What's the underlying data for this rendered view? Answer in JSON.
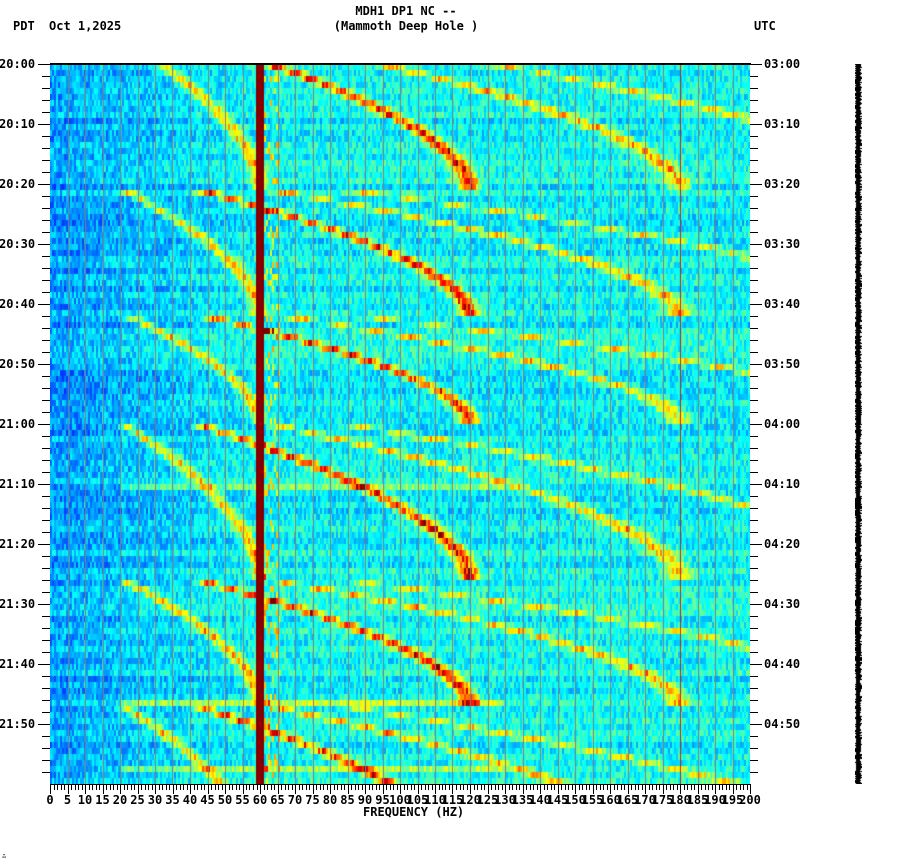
{
  "header": {
    "title_line1": "MDH1 DP1 NC --",
    "title_line2": "(Mammoth Deep Hole )",
    "left_timezone": "PDT",
    "date": "Oct 1,2025",
    "right_timezone": "UTC"
  },
  "footer": {
    "corner_mark": "∴"
  },
  "colors": {
    "background": "#ffffff",
    "axis": "#000000",
    "gridline": "#808080",
    "line_60hz": "#8b0000",
    "line_180hz": "#c0201a",
    "trace": "#000000"
  },
  "chart_data": {
    "type": "heatmap",
    "title": "MDH1 DP1 NC -- (Mammoth Deep Hole )",
    "subtitle": "PDT Oct 1,2025",
    "xlabel": "FREQUENCY (HZ)",
    "ylabel_left": "PDT",
    "ylabel_right": "UTC",
    "xlim": [
      0,
      200
    ],
    "x_ticks": [
      0,
      5,
      10,
      15,
      20,
      25,
      30,
      35,
      40,
      45,
      50,
      55,
      60,
      65,
      70,
      75,
      80,
      85,
      90,
      95,
      100,
      105,
      110,
      115,
      120,
      125,
      130,
      135,
      140,
      145,
      150,
      155,
      160,
      165,
      170,
      175,
      180,
      185,
      190,
      195,
      200
    ],
    "x_minor_tick_step": 1,
    "time_range_minutes": 120,
    "y_ticks_left": [
      "20:00",
      "20:10",
      "20:20",
      "20:30",
      "20:40",
      "20:50",
      "21:00",
      "21:10",
      "21:20",
      "21:30",
      "21:40",
      "21:50"
    ],
    "y_ticks_right": [
      "03:00",
      "03:10",
      "03:20",
      "03:30",
      "03:40",
      "03:50",
      "04:00",
      "04:10",
      "04:20",
      "04:30",
      "04:40",
      "04:50"
    ],
    "y_minor_tick_step_minutes": 2,
    "grid": {
      "vertical_every_hz": 5
    },
    "colormap": "jet",
    "persistent_lines_hz": [
      60,
      180
    ],
    "sweep_cycles": [
      {
        "start_min": -4,
        "end_min": 21,
        "f_start_hz": 21,
        "f_end_hz": 60
      },
      {
        "start_min": 21,
        "end_min": 42,
        "f_start_hz": 21,
        "f_end_hz": 60
      },
      {
        "start_min": 42,
        "end_min": 60,
        "f_start_hz": 22,
        "f_end_hz": 60
      },
      {
        "start_min": 60,
        "end_min": 86,
        "f_start_hz": 21,
        "f_end_hz": 60
      },
      {
        "start_min": 86,
        "end_min": 107,
        "f_start_hz": 21,
        "f_end_hz": 60
      },
      {
        "start_min": 107,
        "end_min": 133,
        "f_start_hz": 21,
        "f_end_hz": 60
      }
    ],
    "harmonics": [
      1,
      2,
      3,
      4
    ],
    "legend": []
  }
}
